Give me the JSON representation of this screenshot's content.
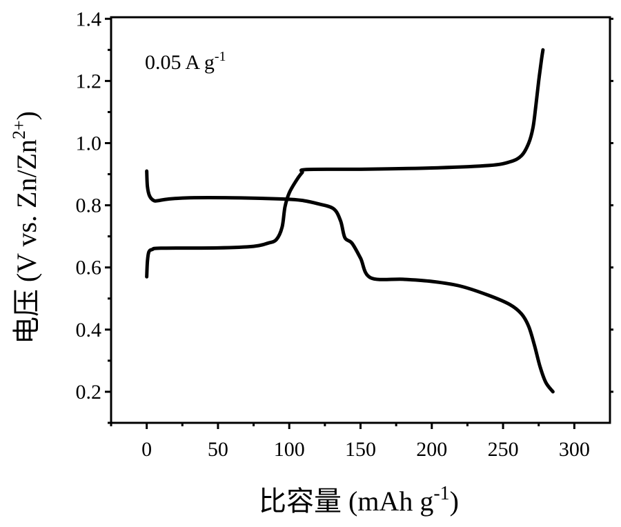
{
  "chart_data": {
    "type": "line",
    "title": "",
    "annotation": "0.05 A g",
    "annotation_sup": "-1",
    "xlabel": "比容量 (mAh g",
    "xlabel_sup": "-1",
    "xlabel_end": ")",
    "ylabel": "电压 (V vs. Zn/Zn",
    "ylabel_sup": "2+",
    "ylabel_end": ")",
    "xlim": [
      -25,
      325
    ],
    "ylim": [
      0.1,
      1.405
    ],
    "xticks": [
      0,
      50,
      100,
      150,
      200,
      250,
      300
    ],
    "xtick_labels": [
      "0",
      "50",
      "100",
      "150",
      "200",
      "250",
      "300"
    ],
    "yticks": [
      0.2,
      0.4,
      0.6,
      0.8,
      1.0,
      1.2,
      1.4
    ],
    "ytick_labels": [
      "0.2",
      "0.4",
      "0.6",
      "0.8",
      "1.0",
      "1.2",
      "1.4"
    ],
    "grid": false,
    "line_color": "#000000",
    "series": [
      {
        "x": [
          0,
          0.5,
          2,
          5,
          8,
          15,
          30,
          60,
          97,
          110,
          120,
          131,
          136,
          139,
          144,
          150,
          157,
          180,
          200,
          220,
          240,
          255,
          263,
          268,
          272,
          276,
          280,
          285
        ],
        "y": [
          0.91,
          0.86,
          0.83,
          0.815,
          0.815,
          0.82,
          0.824,
          0.824,
          0.82,
          0.815,
          0.805,
          0.789,
          0.75,
          0.696,
          0.678,
          0.63,
          0.567,
          0.562,
          0.555,
          0.54,
          0.51,
          0.48,
          0.45,
          0.41,
          0.35,
          0.28,
          0.23,
          0.2
        ]
      },
      {
        "x": [
          0,
          0.5,
          1.5,
          4,
          10,
          50,
          75,
          85,
          91,
          95,
          97,
          100,
          105,
          109,
          112,
          150,
          200,
          240,
          255,
          263,
          268,
          271,
          273,
          275,
          277,
          278
        ],
        "y": [
          0.57,
          0.62,
          0.65,
          0.658,
          0.662,
          0.663,
          0.668,
          0.678,
          0.69,
          0.73,
          0.795,
          0.84,
          0.88,
          0.905,
          0.915,
          0.916,
          0.92,
          0.928,
          0.94,
          0.96,
          1.0,
          1.05,
          1.12,
          1.2,
          1.27,
          1.3
        ]
      }
    ]
  }
}
